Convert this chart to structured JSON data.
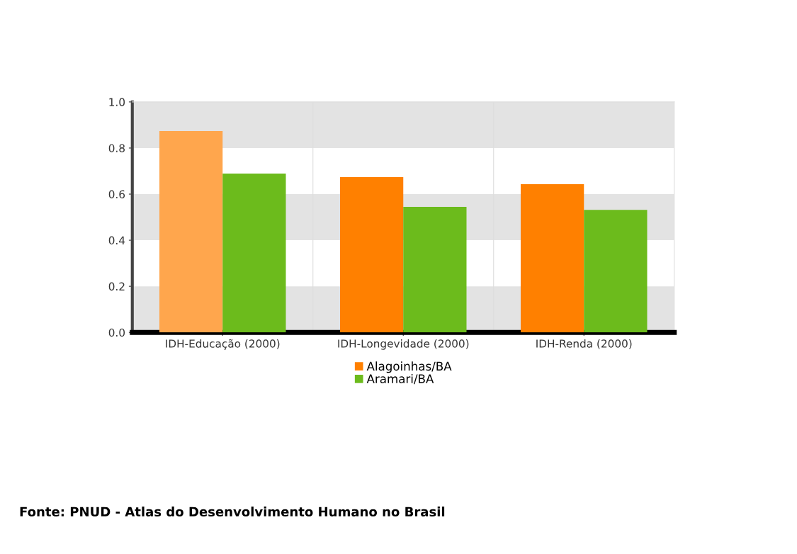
{
  "chart_data": {
    "type": "bar",
    "categories": [
      "IDH-Educação (2000)",
      "IDH-Longevidade (2000)",
      "IDH-Renda (2000)"
    ],
    "series": [
      {
        "name": "Alagoinhas/BA",
        "color": "#ff8000",
        "colors": [
          "#ffa64d",
          "#ff8000",
          "#ff8000"
        ],
        "values": [
          0.874,
          0.674,
          0.643
        ]
      },
      {
        "name": "Aramari/BA",
        "color": "#6cbb1c",
        "values": [
          0.689,
          0.545,
          0.532
        ]
      }
    ],
    "ylim": [
      0,
      1.0
    ],
    "yticks": [
      {
        "value": 0,
        "label": "0.0"
      },
      {
        "value": 0.2,
        "label": "0.2"
      },
      {
        "value": 0.4,
        "label": "0.4"
      },
      {
        "value": 0.6,
        "label": "0.6"
      },
      {
        "value": 0.8,
        "label": "0.8"
      },
      {
        "value": 1.0,
        "label": "1.0"
      }
    ],
    "bands": [
      {
        "axis": "y",
        "from": 0,
        "to": 0.2,
        "color": "#e3e3e3"
      },
      {
        "axis": "y",
        "from": 0.4,
        "to": 0.6,
        "color": "#e3e3e3"
      },
      {
        "axis": "y",
        "from": 0.8,
        "to": 1.0,
        "color": "#e3e3e3"
      }
    ],
    "grid": false,
    "legend": "bottom",
    "annotations": [
      "Fonte: PNUD - Atlas do Desenvolvimento Humano no Brasil"
    ]
  }
}
